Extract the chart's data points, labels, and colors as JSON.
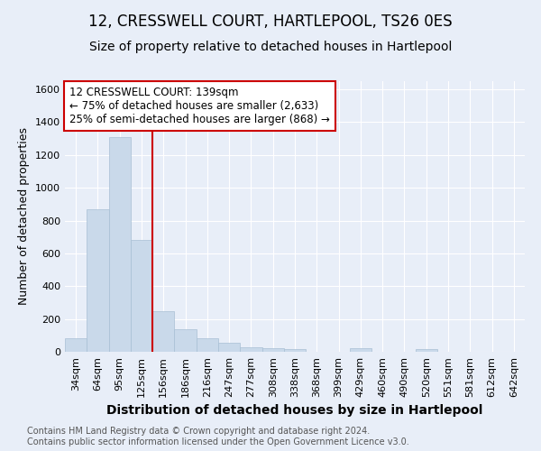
{
  "title": "12, CRESSWELL COURT, HARTLEPOOL, TS26 0ES",
  "subtitle": "Size of property relative to detached houses in Hartlepool",
  "xlabel": "Distribution of detached houses by size in Hartlepool",
  "ylabel": "Number of detached properties",
  "categories": [
    "34sqm",
    "64sqm",
    "95sqm",
    "125sqm",
    "156sqm",
    "186sqm",
    "216sqm",
    "247sqm",
    "277sqm",
    "308sqm",
    "338sqm",
    "368sqm",
    "399sqm",
    "429sqm",
    "460sqm",
    "490sqm",
    "520sqm",
    "551sqm",
    "581sqm",
    "612sqm",
    "642sqm"
  ],
  "values": [
    80,
    870,
    1310,
    680,
    250,
    140,
    80,
    55,
    30,
    20,
    15,
    0,
    0,
    20,
    0,
    0,
    15,
    0,
    0,
    0,
    0
  ],
  "bar_color": "#c9d9ea",
  "bar_edgecolor": "#a8bfd4",
  "vline_color": "#cc0000",
  "vline_pos": 3.5,
  "annotation_line1": "12 CRESSWELL COURT: 139sqm",
  "annotation_line2": "← 75% of detached houses are smaller (2,633)",
  "annotation_line3": "25% of semi-detached houses are larger (868) →",
  "annotation_box_color": "#cc0000",
  "ylim": [
    0,
    1650
  ],
  "yticks": [
    0,
    200,
    400,
    600,
    800,
    1000,
    1200,
    1400,
    1600
  ],
  "footer": "Contains HM Land Registry data © Crown copyright and database right 2024.\nContains public sector information licensed under the Open Government Licence v3.0.",
  "background_color": "#e8eef8",
  "plot_background_color": "#e8eef8",
  "grid_color": "#ffffff",
  "title_fontsize": 12,
  "subtitle_fontsize": 10,
  "xlabel_fontsize": 10,
  "ylabel_fontsize": 9,
  "tick_fontsize": 8,
  "annotation_fontsize": 8.5,
  "footer_fontsize": 7
}
